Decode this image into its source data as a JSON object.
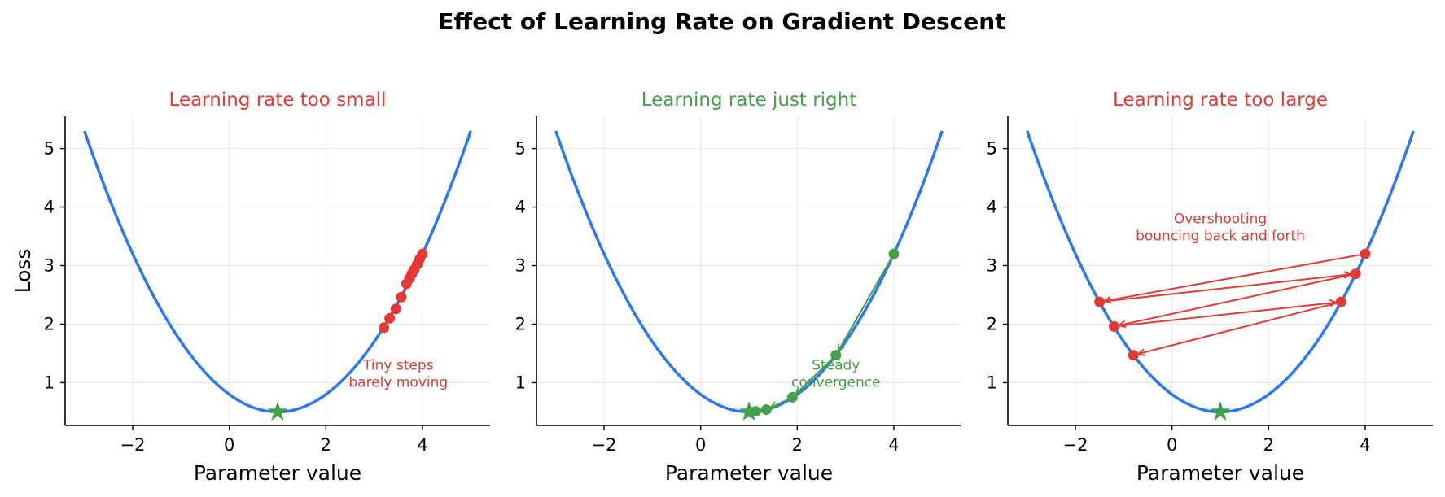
{
  "figure_title": "Effect of Learning Rate on Gradient Descent",
  "chart_data": [
    {
      "type": "line",
      "title": "Learning rate too small",
      "title_color": "#e53935",
      "xlabel": "Parameter value",
      "ylabel": "Loss",
      "xlim": [
        -3.4,
        5.4
      ],
      "ylim": [
        0.27,
        5.55
      ],
      "xticks": [
        -2,
        0,
        2,
        4
      ],
      "yticks": [
        1,
        2,
        3,
        4,
        5
      ],
      "grid": true,
      "curve": {
        "a": 0.3,
        "center": 1,
        "min": 0.5,
        "x_range": [
          -3,
          5
        ],
        "color": "#2979f2"
      },
      "path": {
        "color": "#e53935",
        "arrows": false,
        "x": [
          4.0,
          3.94,
          3.89,
          3.83,
          3.78,
          3.73,
          3.67,
          3.56,
          3.45,
          3.32,
          3.2
        ],
        "y": [
          3.2,
          3.11,
          3.02,
          2.93,
          2.86,
          2.78,
          2.69,
          2.46,
          2.26,
          2.1,
          1.94
        ]
      },
      "minimum": {
        "x": 1,
        "y": 0.5,
        "color": "#43a047"
      },
      "annotation": {
        "lines": [
          "Tiny steps",
          "barely moving"
        ],
        "x": 3.5,
        "y": 1.2,
        "color": "#e53935"
      }
    },
    {
      "type": "line",
      "title": "Learning rate just right",
      "title_color": "#43a047",
      "xlabel": "Parameter value",
      "ylabel": "",
      "xlim": [
        -3.4,
        5.4
      ],
      "ylim": [
        0.27,
        5.55
      ],
      "xticks": [
        -2,
        0,
        2,
        4
      ],
      "yticks": [
        1,
        2,
        3,
        4,
        5
      ],
      "grid": true,
      "curve": {
        "a": 0.3,
        "center": 1,
        "min": 0.5,
        "x_range": [
          -3,
          5
        ],
        "color": "#2979f2"
      },
      "path": {
        "color": "#43a047",
        "arrows": true,
        "x": [
          4.0,
          2.8,
          1.9,
          1.36,
          1.14,
          1.05,
          1.01
        ],
        "y": [
          3.2,
          1.47,
          0.75,
          0.54,
          0.51,
          0.5,
          0.5
        ]
      },
      "minimum": {
        "x": 1,
        "y": 0.5,
        "color": "#43a047"
      },
      "annotation": {
        "lines": [
          "Steady",
          "convergence"
        ],
        "x": 2.8,
        "y": 1.2,
        "color": "#43a047"
      }
    },
    {
      "type": "line",
      "title": "Learning rate too large",
      "title_color": "#e53935",
      "xlabel": "Parameter value",
      "ylabel": "",
      "xlim": [
        -3.4,
        5.4
      ],
      "ylim": [
        0.27,
        5.55
      ],
      "xticks": [
        -2,
        0,
        2,
        4
      ],
      "yticks": [
        1,
        2,
        3,
        4,
        5
      ],
      "grid": true,
      "curve": {
        "a": 0.3,
        "center": 1,
        "min": 0.5,
        "x_range": [
          -3,
          5
        ],
        "color": "#2979f2"
      },
      "path": {
        "color": "#e53935",
        "arrows": true,
        "x": [
          4.0,
          -1.5,
          3.8,
          -1.2,
          3.5,
          -0.8
        ],
        "y": [
          3.2,
          2.38,
          2.86,
          1.96,
          2.38,
          1.47
        ]
      },
      "minimum": {
        "x": 1,
        "y": 0.5,
        "color": "#43a047"
      },
      "annotation": {
        "lines": [
          "Overshooting",
          "bouncing back and forth"
        ],
        "x": 1.0,
        "y": 3.7,
        "color": "#e53935"
      }
    }
  ]
}
